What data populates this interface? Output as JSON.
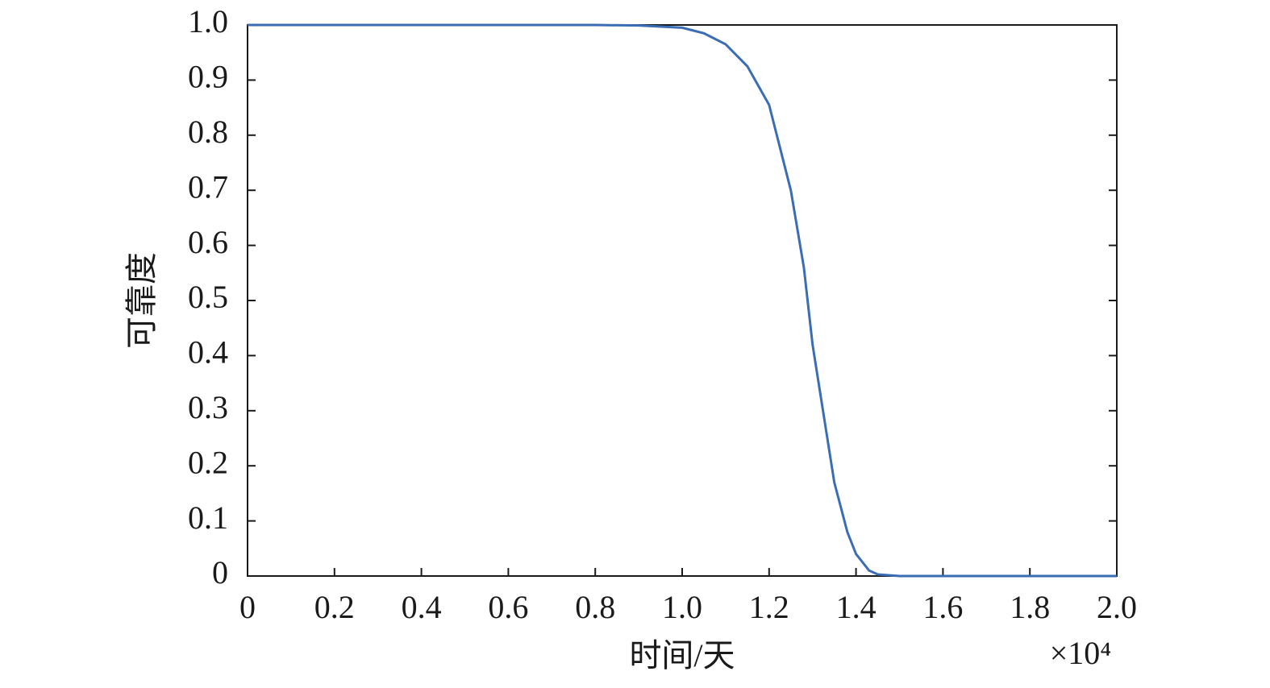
{
  "chart_data": {
    "type": "line",
    "x_label": "时间/天",
    "y_label": "可靠度",
    "x_scale_label": "×10⁴",
    "xlim": [
      0,
      2.0
    ],
    "ylim": [
      0,
      1.0
    ],
    "xticks": [
      0,
      0.2,
      0.4,
      0.6,
      0.8,
      {
        "value": 1,
        "label": "1.0"
      },
      1.2,
      1.4,
      1.6,
      1.8,
      {
        "value": 2,
        "label": "2.0"
      }
    ],
    "yticks": [
      0,
      0.1,
      0.2,
      0.3,
      0.4,
      0.5,
      0.6,
      0.7,
      0.8,
      0.9,
      {
        "value": 1,
        "label": "1.0"
      }
    ],
    "x": [
      0,
      0.5,
      0.8,
      0.9,
      0.95,
      1.0,
      1.05,
      1.1,
      1.15,
      1.2,
      1.25,
      1.28,
      1.3,
      1.33,
      1.35,
      1.38,
      1.4,
      1.43,
      1.45,
      1.5,
      2.0
    ],
    "series": [
      {
        "color": "#3a6db5",
        "values": [
          1,
          1,
          1,
          0.999,
          0.997,
          0.995,
          0.985,
          0.965,
          0.925,
          0.855,
          0.7,
          0.56,
          0.42,
          0.27,
          0.17,
          0.08,
          0.04,
          0.01,
          0.003,
          0,
          0
        ]
      }
    ]
  }
}
